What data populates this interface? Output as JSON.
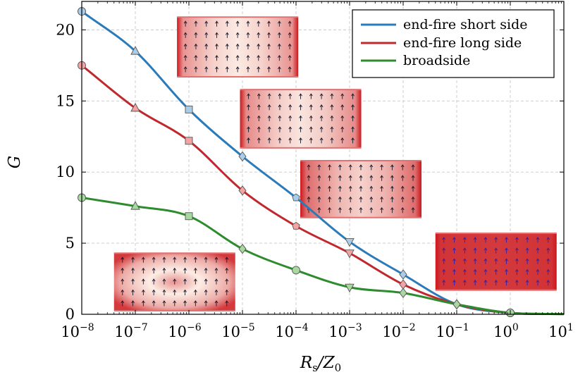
{
  "chart_data": {
    "type": "line",
    "x_scale": "log",
    "xlabel": {
      "main": "R",
      "sub": "s",
      "rest": "/Z",
      "sub2": "0"
    },
    "ylabel": "G",
    "xlim": [
      1e-08,
      10
    ],
    "ylim": [
      0,
      22
    ],
    "grid": true,
    "legend": "top-right",
    "x_ticks": [
      {
        "base": "10",
        "exp": "−8",
        "value": 1e-08
      },
      {
        "base": "10",
        "exp": "−7",
        "value": 1e-07
      },
      {
        "base": "10",
        "exp": "−6",
        "value": 1e-06
      },
      {
        "base": "10",
        "exp": "−5",
        "value": 1e-05
      },
      {
        "base": "10",
        "exp": "−4",
        "value": 0.0001
      },
      {
        "base": "10",
        "exp": "−3",
        "value": 0.001
      },
      {
        "base": "10",
        "exp": "−2",
        "value": 0.01
      },
      {
        "base": "10",
        "exp": "−1",
        "value": 0.1
      },
      {
        "base": "10",
        "exp": "0",
        "value": 1
      },
      {
        "base": "10",
        "exp": "1",
        "value": 10
      }
    ],
    "y_ticks": [
      {
        "label": "0",
        "value": 0
      },
      {
        "label": "5",
        "value": 5
      },
      {
        "label": "10",
        "value": 10
      },
      {
        "label": "15",
        "value": 15
      },
      {
        "label": "20",
        "value": 20
      }
    ],
    "series": [
      {
        "name": "end-fire short side",
        "color": "#2b7bba",
        "marker_fill": "#a9cce8",
        "points": [
          [
            1e-08,
            21.3
          ],
          [
            1e-07,
            18.5
          ],
          [
            1e-06,
            14.4
          ],
          [
            1e-05,
            11.1
          ],
          [
            0.0001,
            8.2
          ],
          [
            0.001,
            5.1
          ],
          [
            0.01,
            2.8
          ],
          [
            0.1,
            0.7
          ],
          [
            1,
            0.1
          ],
          [
            10,
            0.02
          ]
        ],
        "markers": [
          "circle",
          "triangle",
          "square",
          "diamond",
          "pentagon",
          "triangle-down",
          "diamond",
          "diamond",
          "circle",
          "none"
        ]
      },
      {
        "name": "end-fire long side",
        "color": "#c0282d",
        "marker_fill": "#f4a3a3",
        "points": [
          [
            1e-08,
            17.5
          ],
          [
            1e-07,
            14.5
          ],
          [
            1e-06,
            12.2
          ],
          [
            1e-05,
            8.7
          ],
          [
            0.0001,
            6.2
          ],
          [
            0.001,
            4.3
          ],
          [
            0.01,
            2.1
          ],
          [
            0.1,
            0.7
          ],
          [
            1,
            0.1
          ],
          [
            10,
            0.02
          ]
        ],
        "markers": [
          "circle",
          "triangle",
          "square",
          "diamond",
          "pentagon",
          "triangle-down",
          "diamond",
          "diamond",
          "circle",
          "none"
        ]
      },
      {
        "name": "broadside",
        "color": "#2e8b2e",
        "marker_fill": "#a8d8a0",
        "points": [
          [
            1e-08,
            8.2
          ],
          [
            1e-07,
            7.6
          ],
          [
            1e-06,
            6.9
          ],
          [
            1e-05,
            4.6
          ],
          [
            0.0001,
            3.1
          ],
          [
            0.001,
            1.9
          ],
          [
            0.01,
            1.5
          ],
          [
            0.1,
            0.7
          ],
          [
            1,
            0.1
          ],
          [
            10,
            0.02
          ]
        ],
        "markers": [
          "circle",
          "triangle",
          "square",
          "diamond",
          "circle",
          "triangle-down",
          "diamond",
          "diamond",
          "circle",
          "none"
        ]
      }
    ],
    "insets": [
      {
        "id": "inset-1",
        "style": "edge-dark",
        "intensity": 0.25,
        "x_at": 6e-07,
        "y_top": 20.9,
        "y_bottom": 16.7
      },
      {
        "id": "inset-2",
        "style": "edge-dark",
        "intensity": 0.35,
        "x_at": 9e-06,
        "y_top": 15.8,
        "y_bottom": 11.7
      },
      {
        "id": "inset-3",
        "style": "edge-dark",
        "intensity": 0.7,
        "x_at": 0.00012,
        "y_top": 10.8,
        "y_bottom": 6.8
      },
      {
        "id": "inset-4",
        "style": "solid",
        "intensity": 1.0,
        "x_at": 0.04,
        "y_top": 5.7,
        "y_bottom": 1.7
      },
      {
        "id": "inset-5",
        "style": "center-bright",
        "intensity": 0.3,
        "x_at": 4e-08,
        "y_top": 4.3,
        "y_bottom": 0.25
      }
    ]
  }
}
